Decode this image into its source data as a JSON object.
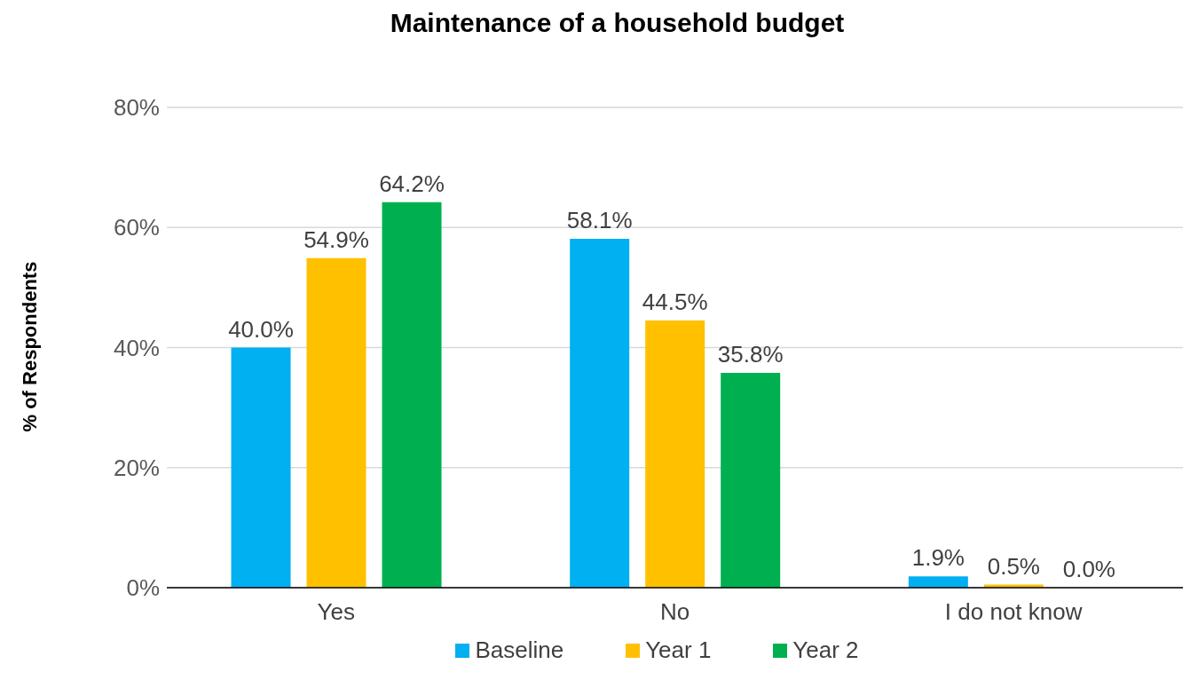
{
  "chart_data": {
    "type": "bar",
    "title": "Maintenance of a household budget",
    "ylabel": "% of Respondents",
    "categories": [
      "Yes",
      "No",
      "I do not know"
    ],
    "series": [
      {
        "name": "Baseline",
        "color": "#00b0f0",
        "values": [
          40.0,
          58.1,
          1.9
        ],
        "value_labels": [
          "40.0%",
          "58.1%",
          "1.9%"
        ]
      },
      {
        "name": "Year 1",
        "color": "#ffc000",
        "values": [
          54.9,
          44.5,
          0.5
        ],
        "value_labels": [
          "54.9%",
          "44.5%",
          "0.5%"
        ]
      },
      {
        "name": "Year 2",
        "color": "#00b050",
        "values": [
          64.2,
          35.8,
          0.0
        ],
        "value_labels": [
          "64.2%",
          "35.8%",
          "0.0%"
        ]
      }
    ],
    "ylim": [
      0,
      80
    ],
    "yticks": [
      {
        "value": 0,
        "label": "0%"
      },
      {
        "value": 20,
        "label": "20%"
      },
      {
        "value": 40,
        "label": "40%"
      },
      {
        "value": 60,
        "label": "60%"
      },
      {
        "value": 80,
        "label": "80%"
      }
    ],
    "grid": "y",
    "legend": "bottom"
  }
}
